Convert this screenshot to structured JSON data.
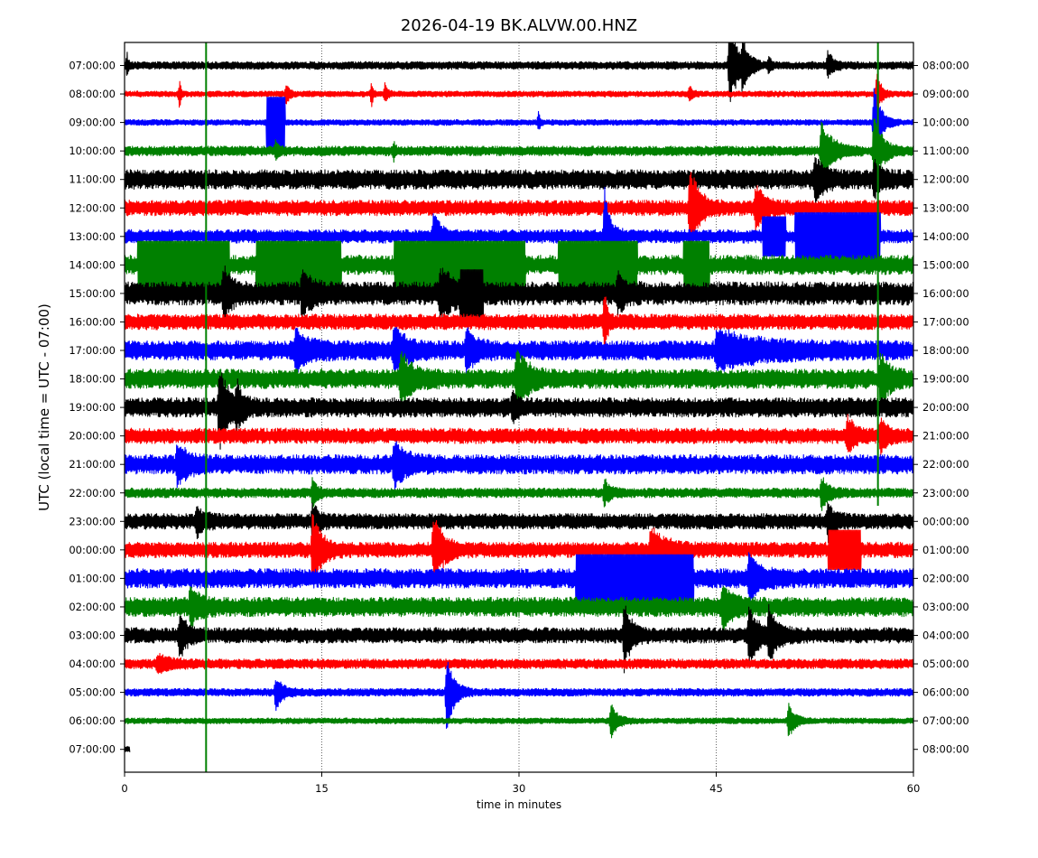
{
  "chart_data": {
    "type": "line",
    "title": "2026-04-19 BK.ALVW.00.HNZ",
    "xlabel": "time in minutes",
    "ylabel": "UTC (local time = UTC - 07:00)",
    "xlim": [
      0,
      60
    ],
    "x_ticks": [
      0,
      15,
      30,
      45,
      60
    ],
    "grid": "vertical dotted at 15, 30, 45",
    "left_tick_labels": [
      "07:00:00",
      "08:00:00",
      "09:00:00",
      "10:00:00",
      "11:00:00",
      "12:00:00",
      "13:00:00",
      "14:00:00",
      "15:00:00",
      "16:00:00",
      "17:00:00",
      "18:00:00",
      "19:00:00",
      "20:00:00",
      "21:00:00",
      "22:00:00",
      "23:00:00",
      "00:00:00",
      "01:00:00",
      "02:00:00",
      "03:00:00",
      "04:00:00",
      "05:00:00",
      "06:00:00",
      "07:00:00"
    ],
    "right_tick_labels": [
      "08:00:00",
      "09:00:00",
      "10:00:00",
      "11:00:00",
      "12:00:00",
      "13:00:00",
      "14:00:00",
      "15:00:00",
      "16:00:00",
      "17:00:00",
      "18:00:00",
      "19:00:00",
      "20:00:00",
      "21:00:00",
      "22:00:00",
      "23:00:00",
      "00:00:00",
      "01:00:00",
      "02:00:00",
      "03:00:00",
      "04:00:00",
      "05:00:00",
      "06:00:00",
      "07:00:00",
      "08:00:00"
    ],
    "color_cycle": [
      "#000000",
      "#ff0000",
      "#0000ff",
      "#008000"
    ],
    "traces": [
      {
        "hour": "07:00:00",
        "noise": 0.4,
        "events": [
          {
            "t": 0.2,
            "amp": 1.2,
            "dur": 0.1
          },
          {
            "t": 46.0,
            "amp": 5.5,
            "dur": 0.6
          },
          {
            "t": 47.0,
            "amp": 2.5,
            "dur": 0.5
          },
          {
            "t": 49.0,
            "amp": 1.0,
            "dur": 0.2
          },
          {
            "t": 53.5,
            "amp": 1.6,
            "dur": 0.4
          }
        ]
      },
      {
        "hour": "08:00:00",
        "noise": 0.3,
        "events": [
          {
            "t": 4.2,
            "amp": 1.8,
            "dur": 0.1
          },
          {
            "t": 12.3,
            "amp": 1.5,
            "dur": 0.2
          },
          {
            "t": 18.8,
            "amp": 1.8,
            "dur": 0.1
          },
          {
            "t": 19.8,
            "amp": 1.2,
            "dur": 0.2
          },
          {
            "t": 43.0,
            "amp": 1.0,
            "dur": 0.2
          },
          {
            "t": 57.2,
            "amp": 3.0,
            "dur": 0.3
          }
        ]
      },
      {
        "hour": "09:00:00",
        "noise": 0.3,
        "events": [
          {
            "t": 10.8,
            "amp": 3.2,
            "dur": 1.4,
            "block": true
          },
          {
            "t": 31.5,
            "amp": 1.2,
            "dur": 0.1
          },
          {
            "t": 57.0,
            "amp": 4.5,
            "dur": 0.5
          }
        ]
      },
      {
        "hour": "10:00:00",
        "noise": 0.5,
        "events": [
          {
            "t": 11.5,
            "amp": 1.0,
            "dur": 0.2
          },
          {
            "t": 20.5,
            "amp": 1.0,
            "dur": 0.1
          },
          {
            "t": 53.0,
            "amp": 3.5,
            "dur": 0.8
          },
          {
            "t": 57.0,
            "amp": 4.5,
            "dur": 0.6
          }
        ]
      },
      {
        "hour": "11:00:00",
        "noise": 1.0,
        "events": [
          {
            "t": 52.5,
            "amp": 2.5,
            "dur": 0.6
          },
          {
            "t": 57.0,
            "amp": 2.0,
            "dur": 0.5
          }
        ]
      },
      {
        "hour": "12:00:00",
        "noise": 0.8,
        "events": [
          {
            "t": 43.0,
            "amp": 5.5,
            "dur": 0.6
          },
          {
            "t": 48.0,
            "amp": 2.5,
            "dur": 0.6
          }
        ]
      },
      {
        "hour": "13:00:00",
        "noise": 0.7,
        "events": [
          {
            "t": 23.5,
            "amp": 3.0,
            "dur": 0.5
          },
          {
            "t": 36.5,
            "amp": 6.0,
            "dur": 0.4
          },
          {
            "t": 48.5,
            "amp": 2.5,
            "dur": 1.8,
            "block": true
          },
          {
            "t": 51.0,
            "amp": 3.0,
            "dur": 6.5,
            "block": true
          }
        ]
      },
      {
        "hour": "14:00:00",
        "noise": 1.0,
        "events": [
          {
            "t": 1.0,
            "amp": 3.0,
            "dur": 7.0,
            "block": true
          },
          {
            "t": 10.0,
            "amp": 3.0,
            "dur": 6.5,
            "block": true
          },
          {
            "t": 20.5,
            "amp": 3.0,
            "dur": 10.0,
            "block": true
          },
          {
            "t": 33.0,
            "amp": 3.0,
            "dur": 6.0,
            "block": true
          },
          {
            "t": 42.5,
            "amp": 3.0,
            "dur": 2.0,
            "block": true
          }
        ]
      },
      {
        "hour": "15:00:00",
        "noise": 1.2,
        "events": [
          {
            "t": 7.5,
            "amp": 3.0,
            "dur": 0.5
          },
          {
            "t": 13.5,
            "amp": 2.5,
            "dur": 0.6
          },
          {
            "t": 24.0,
            "amp": 2.5,
            "dur": 1.0
          },
          {
            "t": 25.5,
            "amp": 3.0,
            "dur": 1.8,
            "block": true
          },
          {
            "t": 37.5,
            "amp": 2.0,
            "dur": 0.5
          }
        ]
      },
      {
        "hour": "16:00:00",
        "noise": 0.8,
        "events": [
          {
            "t": 36.5,
            "amp": 4.0,
            "dur": 0.2
          }
        ]
      },
      {
        "hour": "17:00:00",
        "noise": 1.0,
        "events": [
          {
            "t": 13.0,
            "amp": 2.0,
            "dur": 1.0
          },
          {
            "t": 20.5,
            "amp": 2.5,
            "dur": 0.8
          },
          {
            "t": 26.0,
            "amp": 2.5,
            "dur": 0.6
          },
          {
            "t": 45.0,
            "amp": 2.0,
            "dur": 3.0
          }
        ]
      },
      {
        "hour": "18:00:00",
        "noise": 1.0,
        "events": [
          {
            "t": 21.0,
            "amp": 3.0,
            "dur": 0.8
          },
          {
            "t": 29.8,
            "amp": 3.5,
            "dur": 0.8
          },
          {
            "t": 57.5,
            "amp": 3.0,
            "dur": 0.6
          }
        ]
      },
      {
        "hour": "19:00:00",
        "noise": 1.0,
        "events": [
          {
            "t": 7.2,
            "amp": 5.0,
            "dur": 0.6
          },
          {
            "t": 8.5,
            "amp": 2.5,
            "dur": 0.4
          },
          {
            "t": 29.5,
            "amp": 1.5,
            "dur": 0.3
          }
        ]
      },
      {
        "hour": "20:00:00",
        "noise": 0.8,
        "events": [
          {
            "t": 55.0,
            "amp": 2.0,
            "dur": 0.5
          },
          {
            "t": 57.5,
            "amp": 2.0,
            "dur": 0.4
          }
        ]
      },
      {
        "hour": "21:00:00",
        "noise": 1.0,
        "events": [
          {
            "t": 4.0,
            "amp": 2.0,
            "dur": 0.8
          },
          {
            "t": 20.5,
            "amp": 2.5,
            "dur": 0.8
          }
        ]
      },
      {
        "hour": "22:00:00",
        "noise": 0.5,
        "events": [
          {
            "t": 14.3,
            "amp": 2.0,
            "dur": 0.3
          },
          {
            "t": 36.5,
            "amp": 1.5,
            "dur": 0.4
          },
          {
            "t": 53.0,
            "amp": 2.0,
            "dur": 0.5
          }
        ]
      },
      {
        "hour": "23:00:00",
        "noise": 0.8,
        "events": [
          {
            "t": 5.5,
            "amp": 1.5,
            "dur": 0.5
          },
          {
            "t": 14.3,
            "amp": 2.0,
            "dur": 0.4
          },
          {
            "t": 53.5,
            "amp": 2.0,
            "dur": 0.5
          }
        ]
      },
      {
        "hour": "00:00:00",
        "noise": 0.8,
        "events": [
          {
            "t": 14.3,
            "amp": 5.0,
            "dur": 0.6
          },
          {
            "t": 23.5,
            "amp": 4.0,
            "dur": 0.7
          },
          {
            "t": 40.0,
            "amp": 2.5,
            "dur": 1.0
          },
          {
            "t": 53.5,
            "amp": 2.5,
            "dur": 2.5,
            "block": true
          }
        ]
      },
      {
        "hour": "01:00:00",
        "noise": 1.0,
        "events": [
          {
            "t": 34.3,
            "amp": 3.0,
            "dur": 9.0,
            "block": true
          },
          {
            "t": 47.5,
            "amp": 3.0,
            "dur": 0.7
          }
        ]
      },
      {
        "hour": "02:00:00",
        "noise": 1.0,
        "events": [
          {
            "t": 5.0,
            "amp": 2.0,
            "dur": 0.6
          },
          {
            "t": 45.5,
            "amp": 2.5,
            "dur": 0.6
          }
        ]
      },
      {
        "hour": "03:00:00",
        "noise": 0.8,
        "events": [
          {
            "t": 4.2,
            "amp": 2.5,
            "dur": 0.5
          },
          {
            "t": 38.0,
            "amp": 4.0,
            "dur": 0.5
          },
          {
            "t": 47.5,
            "amp": 3.5,
            "dur": 0.6
          },
          {
            "t": 49.0,
            "amp": 3.0,
            "dur": 0.6
          }
        ]
      },
      {
        "hour": "04:00:00",
        "noise": 0.5,
        "events": [
          {
            "t": 2.5,
            "amp": 1.0,
            "dur": 1.0
          }
        ]
      },
      {
        "hour": "05:00:00",
        "noise": 0.4,
        "events": [
          {
            "t": 11.5,
            "amp": 2.0,
            "dur": 0.5
          },
          {
            "t": 24.5,
            "amp": 5.0,
            "dur": 0.5
          }
        ]
      },
      {
        "hour": "06:00:00",
        "noise": 0.3,
        "events": [
          {
            "t": 37.0,
            "amp": 2.0,
            "dur": 0.5
          },
          {
            "t": 50.5,
            "amp": 2.0,
            "dur": 0.5
          }
        ]
      },
      {
        "hour": "07:00:00",
        "noise": 0.3,
        "events": []
      }
    ]
  }
}
